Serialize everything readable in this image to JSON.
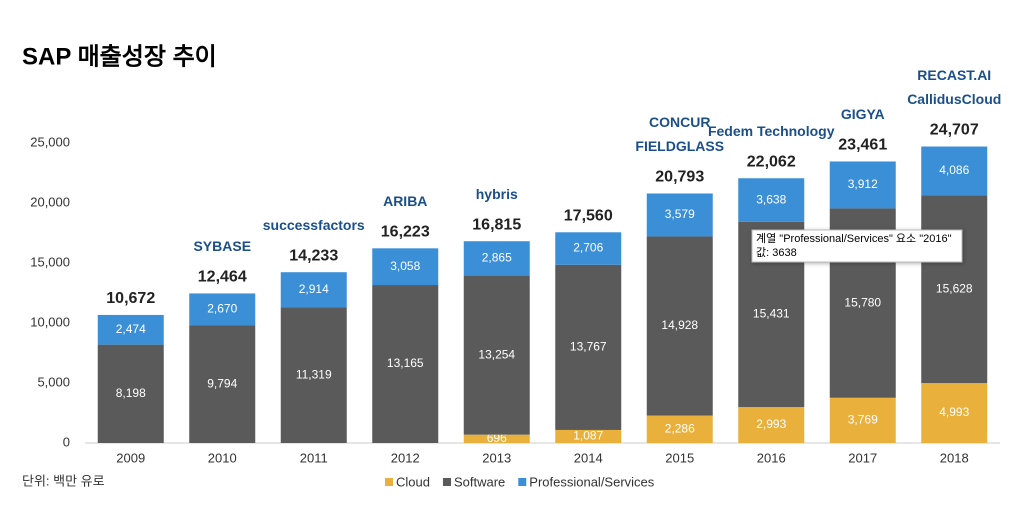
{
  "chart_data": {
    "type": "stacked_bar",
    "title": "SAP 매출성장 추이",
    "note": "단위: 백만 유로",
    "categories": [
      "2009",
      "2010",
      "2011",
      "2012",
      "2013",
      "2014",
      "2015",
      "2016",
      "2017",
      "2018"
    ],
    "series": [
      {
        "name": "Cloud",
        "color": "#e9b13c",
        "values": [
          null,
          null,
          null,
          null,
          696,
          1087,
          2286,
          2993,
          3769,
          4993
        ],
        "value_labels": [
          null,
          null,
          null,
          null,
          "696",
          "1,087",
          "2,286",
          "2,993",
          "3,769",
          "4,993"
        ]
      },
      {
        "name": "Software",
        "color": "#5a5a5a",
        "values": [
          8198,
          9794,
          11319,
          13165,
          13254,
          13767,
          14928,
          15431,
          15780,
          15628
        ],
        "value_labels": [
          "8,198",
          "9,794",
          "11,319",
          "13,165",
          "13,254",
          "13,767",
          "14,928",
          "15,431",
          "15,780",
          "15,628"
        ]
      },
      {
        "name": "Professional/Services",
        "color": "#3b8fd7",
        "values": [
          2474,
          2670,
          2914,
          3058,
          2865,
          2706,
          3579,
          3638,
          3912,
          4086
        ],
        "value_labels": [
          "2,474",
          "2,670",
          "2,914",
          "3,058",
          "2,865",
          "2,706",
          "3,579",
          "3,638",
          "3,912",
          "4,086"
        ]
      }
    ],
    "totals": {
      "values": [
        10672,
        12464,
        14233,
        16223,
        16815,
        17560,
        20793,
        22062,
        23461,
        24707
      ],
      "value_labels": [
        "10,672",
        "12,464",
        "14,233",
        "16,223",
        "16,815",
        "17,560",
        "20,793",
        "22,062",
        "23,461",
        "24,707"
      ]
    },
    "acquisitions": [
      [],
      [
        "SYBASE"
      ],
      [
        "successfactors"
      ],
      [
        "ARIBA"
      ],
      [
        "hybris"
      ],
      [],
      [
        "FIELDGLASS",
        "CONCUR"
      ],
      [
        "Fedem Technology"
      ],
      [
        "GIGYA"
      ],
      [
        "CallidusCloud",
        "RECAST.AI"
      ]
    ],
    "ylim": [
      0,
      25000
    ],
    "yticks": [
      0,
      {
        "value": 5000,
        "label": "5,000"
      },
      {
        "value": 10000,
        "label": "10,000"
      },
      {
        "value": 15000,
        "label": "15,000"
      },
      {
        "value": 20000,
        "label": "20,000"
      },
      {
        "value": 25000,
        "label": "25,000"
      }
    ],
    "grid": false,
    "legend": "bottom"
  },
  "tooltip": {
    "lines": [
      "계열 \"Professional/Services\" 요소 \"2016\"",
      "값: 3638"
    ]
  }
}
